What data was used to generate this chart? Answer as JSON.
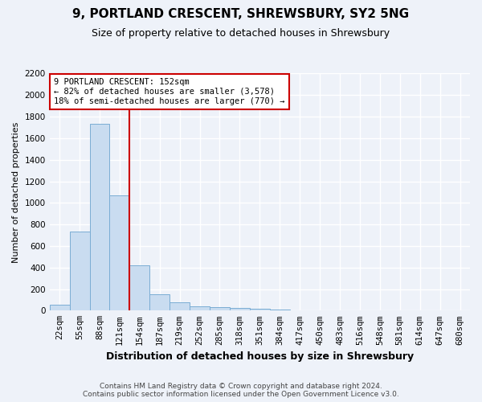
{
  "title": "9, PORTLAND CRESCENT, SHREWSBURY, SY2 5NG",
  "subtitle": "Size of property relative to detached houses in Shrewsbury",
  "xlabel": "Distribution of detached houses by size in Shrewsbury",
  "ylabel": "Number of detached properties",
  "bar_color": "#c9dcf0",
  "bar_edge_color": "#7aadd4",
  "bins": [
    "22sqm",
    "55sqm",
    "88sqm",
    "121sqm",
    "154sqm",
    "187sqm",
    "219sqm",
    "252sqm",
    "285sqm",
    "318sqm",
    "351sqm",
    "384sqm",
    "417sqm",
    "450sqm",
    "483sqm",
    "516sqm",
    "548sqm",
    "581sqm",
    "614sqm",
    "647sqm",
    "680sqm"
  ],
  "values": [
    55,
    730,
    1730,
    1070,
    420,
    155,
    80,
    40,
    30,
    25,
    15,
    8,
    5,
    3,
    2,
    1,
    1,
    0,
    0,
    0,
    0
  ],
  "ylim": [
    0,
    2200
  ],
  "yticks": [
    0,
    200,
    400,
    600,
    800,
    1000,
    1200,
    1400,
    1600,
    1800,
    2000,
    2200
  ],
  "annotation_title": "9 PORTLAND CRESCENT: 152sqm",
  "annotation_line1": "← 82% of detached houses are smaller (3,578)",
  "annotation_line2": "18% of semi-detached houses are larger (770) →",
  "footer_line1": "Contains HM Land Registry data © Crown copyright and database right 2024.",
  "footer_line2": "Contains public sector information licensed under the Open Government Licence v3.0.",
  "background_color": "#eef2f9",
  "plot_bg_color": "#eef2f9",
  "grid_color": "#ffffff",
  "red_line_color": "#cc0000",
  "annotation_box_color": "#ffffff",
  "annotation_box_edge": "#cc0000",
  "title_fontsize": 11,
  "subtitle_fontsize": 9,
  "ylabel_fontsize": 8,
  "xlabel_fontsize": 9,
  "tick_fontsize": 7.5,
  "footer_fontsize": 6.5
}
